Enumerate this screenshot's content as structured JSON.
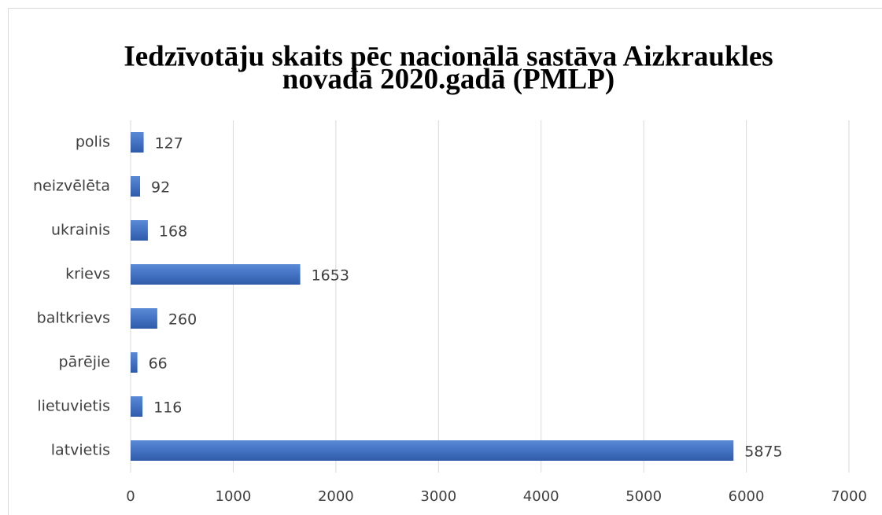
{
  "chart_data": {
    "type": "bar",
    "orientation": "horizontal",
    "title": [
      "Iedzīvotāju skaits pēc nacionālā sastāva Aizkraukles",
      "novadā 2020.gadā (PMLP)"
    ],
    "categories": [
      "latvietis",
      "lietuvietis",
      "pārējie",
      "baltkrievs",
      "krievs",
      "ukrainis",
      "neizvēlēta",
      "polis"
    ],
    "values": [
      5875,
      116,
      66,
      260,
      1653,
      168,
      92,
      127
    ],
    "color": "#4472c4",
    "xlim": [
      0,
      7000
    ],
    "xticks": [
      0,
      1000,
      2000,
      3000,
      4000,
      5000,
      6000,
      7000
    ],
    "grid": true
  }
}
